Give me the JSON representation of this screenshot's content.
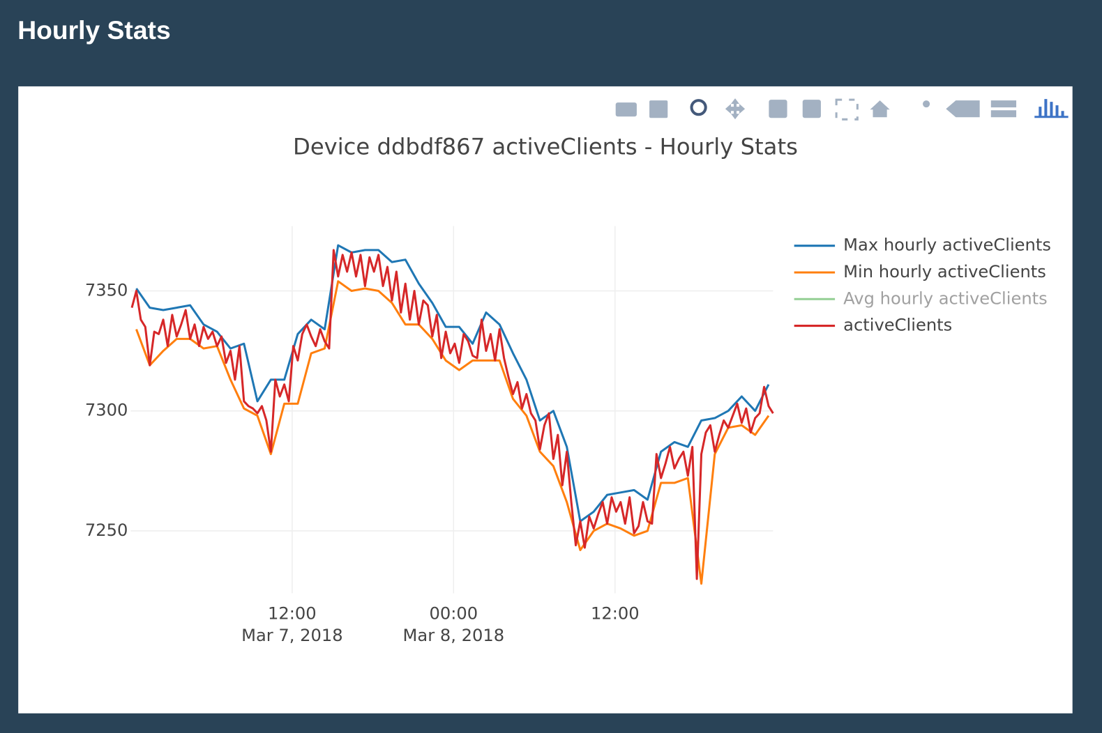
{
  "header": {
    "title": "Hourly Stats"
  },
  "chart_data": {
    "type": "line",
    "title": "Device ddbdf867 activeClients - Hourly Stats",
    "xlim": [
      "2018-03-07T00:00",
      "2018-03-08T23:45"
    ],
    "xticks": [
      {
        "value": "2018-03-07T12:00",
        "label": "12:00",
        "sublabel": "Mar 7, 2018"
      },
      {
        "value": "2018-03-08T00:00",
        "label": "00:00",
        "sublabel": "Mar 8, 2018"
      },
      {
        "value": "2018-03-08T12:00",
        "label": "12:00"
      }
    ],
    "ylim": [
      7224,
      7377
    ],
    "yticks": [
      7250,
      7300,
      7350
    ],
    "grid": true,
    "legend": "right",
    "series": [
      {
        "name": "Max hourly activeClients",
        "color": "#1f77b4",
        "x": [
          "2018-03-07T00:25",
          "2018-03-07T01:25",
          "2018-03-07T02:25",
          "2018-03-07T03:25",
          "2018-03-07T04:25",
          "2018-03-07T05:25",
          "2018-03-07T06:25",
          "2018-03-07T07:25",
          "2018-03-07T08:25",
          "2018-03-07T09:25",
          "2018-03-07T10:25",
          "2018-03-07T11:25",
          "2018-03-07T12:25",
          "2018-03-07T13:25",
          "2018-03-07T14:25",
          "2018-03-07T15:25",
          "2018-03-07T16:25",
          "2018-03-07T17:25",
          "2018-03-07T18:25",
          "2018-03-07T19:25",
          "2018-03-07T20:25",
          "2018-03-07T21:25",
          "2018-03-07T22:25",
          "2018-03-07T23:25",
          "2018-03-08T00:25",
          "2018-03-08T01:25",
          "2018-03-08T02:25",
          "2018-03-08T03:25",
          "2018-03-08T04:25",
          "2018-03-08T05:25",
          "2018-03-08T06:25",
          "2018-03-08T07:25",
          "2018-03-08T08:25",
          "2018-03-08T09:25",
          "2018-03-08T10:25",
          "2018-03-08T11:25",
          "2018-03-08T12:25",
          "2018-03-08T13:25",
          "2018-03-08T14:25",
          "2018-03-08T15:25",
          "2018-03-08T16:25",
          "2018-03-08T17:25",
          "2018-03-08T18:25",
          "2018-03-08T19:25",
          "2018-03-08T20:25",
          "2018-03-08T21:25",
          "2018-03-08T22:25",
          "2018-03-08T23:25"
        ],
        "values": [
          7351,
          7343,
          7342,
          7343,
          7344,
          7336,
          7333,
          7326,
          7328,
          7304,
          7313,
          7313,
          7332,
          7338,
          7334,
          7369,
          7366,
          7367,
          7367,
          7362,
          7363,
          7353,
          7345,
          7335,
          7335,
          7328,
          7341,
          7336,
          7324,
          7313,
          7296,
          7300,
          7285,
          7254,
          7258,
          7265,
          7266,
          7267,
          7263,
          7283,
          7287,
          7285,
          7296,
          7297,
          7300,
          7306,
          7300,
          7311
        ]
      },
      {
        "name": "Min hourly activeClients",
        "color": "#ff7f0e",
        "x": [
          "2018-03-07T00:25",
          "2018-03-07T01:25",
          "2018-03-07T02:25",
          "2018-03-07T03:25",
          "2018-03-07T04:25",
          "2018-03-07T05:25",
          "2018-03-07T06:25",
          "2018-03-07T07:25",
          "2018-03-07T08:25",
          "2018-03-07T09:25",
          "2018-03-07T10:25",
          "2018-03-07T11:25",
          "2018-03-07T12:25",
          "2018-03-07T13:25",
          "2018-03-07T14:25",
          "2018-03-07T15:25",
          "2018-03-07T16:25",
          "2018-03-07T17:25",
          "2018-03-07T18:25",
          "2018-03-07T19:25",
          "2018-03-07T20:25",
          "2018-03-07T21:25",
          "2018-03-07T22:25",
          "2018-03-07T23:25",
          "2018-03-08T00:25",
          "2018-03-08T01:25",
          "2018-03-08T02:25",
          "2018-03-08T03:25",
          "2018-03-08T04:25",
          "2018-03-08T05:25",
          "2018-03-08T06:25",
          "2018-03-08T07:25",
          "2018-03-08T08:25",
          "2018-03-08T09:25",
          "2018-03-08T10:25",
          "2018-03-08T11:25",
          "2018-03-08T12:25",
          "2018-03-08T13:25",
          "2018-03-08T14:25",
          "2018-03-08T15:25",
          "2018-03-08T16:25",
          "2018-03-08T17:25",
          "2018-03-08T18:25",
          "2018-03-08T19:25",
          "2018-03-08T20:25",
          "2018-03-08T21:25",
          "2018-03-08T22:25",
          "2018-03-08T23:25"
        ],
        "values": [
          7334,
          7319,
          7325,
          7330,
          7330,
          7326,
          7327,
          7313,
          7301,
          7298,
          7282,
          7303,
          7303,
          7324,
          7326,
          7354,
          7350,
          7351,
          7350,
          7345,
          7336,
          7336,
          7330,
          7321,
          7317,
          7321,
          7321,
          7321,
          7305,
          7298,
          7283,
          7277,
          7262,
          7242,
          7250,
          7253,
          7251,
          7248,
          7250,
          7270,
          7270,
          7272,
          7228,
          7282,
          7293,
          7294,
          7290,
          7298
        ]
      },
      {
        "name": "Avg hourly activeClients",
        "color": "#2ca02c",
        "visible": "legendonly"
      },
      {
        "name": "activeClients",
        "color": "#d62728",
        "x": [
          "2018-03-07T00:05",
          "2018-03-07T00:25",
          "2018-03-07T00:45",
          "2018-03-07T01:05",
          "2018-03-07T01:25",
          "2018-03-07T01:45",
          "2018-03-07T02:05",
          "2018-03-07T02:25",
          "2018-03-07T02:45",
          "2018-03-07T03:05",
          "2018-03-07T03:25",
          "2018-03-07T03:45",
          "2018-03-07T04:05",
          "2018-03-07T04:25",
          "2018-03-07T04:45",
          "2018-03-07T05:05",
          "2018-03-07T05:25",
          "2018-03-07T05:45",
          "2018-03-07T06:05",
          "2018-03-07T06:25",
          "2018-03-07T06:45",
          "2018-03-07T07:05",
          "2018-03-07T07:25",
          "2018-03-07T07:45",
          "2018-03-07T08:05",
          "2018-03-07T08:25",
          "2018-03-07T08:45",
          "2018-03-07T09:05",
          "2018-03-07T09:25",
          "2018-03-07T09:45",
          "2018-03-07T10:05",
          "2018-03-07T10:25",
          "2018-03-07T10:45",
          "2018-03-07T11:05",
          "2018-03-07T11:25",
          "2018-03-07T11:45",
          "2018-03-07T12:05",
          "2018-03-07T12:25",
          "2018-03-07T12:45",
          "2018-03-07T13:05",
          "2018-03-07T13:25",
          "2018-03-07T13:45",
          "2018-03-07T14:05",
          "2018-03-07T14:25",
          "2018-03-07T14:45",
          "2018-03-07T15:05",
          "2018-03-07T15:25",
          "2018-03-07T15:45",
          "2018-03-07T16:05",
          "2018-03-07T16:25",
          "2018-03-07T16:45",
          "2018-03-07T17:05",
          "2018-03-07T17:25",
          "2018-03-07T17:45",
          "2018-03-07T18:05",
          "2018-03-07T18:25",
          "2018-03-07T18:45",
          "2018-03-07T19:05",
          "2018-03-07T19:25",
          "2018-03-07T19:45",
          "2018-03-07T20:05",
          "2018-03-07T20:25",
          "2018-03-07T20:45",
          "2018-03-07T21:05",
          "2018-03-07T21:25",
          "2018-03-07T21:45",
          "2018-03-07T22:05",
          "2018-03-07T22:25",
          "2018-03-07T22:45",
          "2018-03-07T23:05",
          "2018-03-07T23:25",
          "2018-03-07T23:45",
          "2018-03-08T00:05",
          "2018-03-08T00:25",
          "2018-03-08T00:45",
          "2018-03-08T01:05",
          "2018-03-08T01:25",
          "2018-03-08T01:45",
          "2018-03-08T02:05",
          "2018-03-08T02:25",
          "2018-03-08T02:45",
          "2018-03-08T03:05",
          "2018-03-08T03:25",
          "2018-03-08T03:45",
          "2018-03-08T04:05",
          "2018-03-08T04:25",
          "2018-03-08T04:45",
          "2018-03-08T05:05",
          "2018-03-08T05:25",
          "2018-03-08T05:45",
          "2018-03-08T06:05",
          "2018-03-08T06:25",
          "2018-03-08T06:45",
          "2018-03-08T07:05",
          "2018-03-08T07:25",
          "2018-03-08T07:45",
          "2018-03-08T08:05",
          "2018-03-08T08:25",
          "2018-03-08T08:45",
          "2018-03-08T09:05",
          "2018-03-08T09:25",
          "2018-03-08T09:45",
          "2018-03-08T10:05",
          "2018-03-08T10:25",
          "2018-03-08T10:45",
          "2018-03-08T11:05",
          "2018-03-08T11:25",
          "2018-03-08T11:45",
          "2018-03-08T12:05",
          "2018-03-08T12:25",
          "2018-03-08T12:45",
          "2018-03-08T13:05",
          "2018-03-08T13:25",
          "2018-03-08T13:45",
          "2018-03-08T14:05",
          "2018-03-08T14:25",
          "2018-03-08T14:45",
          "2018-03-08T15:05",
          "2018-03-08T15:25",
          "2018-03-08T15:45",
          "2018-03-08T16:05",
          "2018-03-08T16:25",
          "2018-03-08T16:45",
          "2018-03-08T17:05",
          "2018-03-08T17:25",
          "2018-03-08T17:45",
          "2018-03-08T18:05",
          "2018-03-08T18:25",
          "2018-03-08T18:45",
          "2018-03-08T19:05",
          "2018-03-08T19:25",
          "2018-03-08T19:45",
          "2018-03-08T20:05",
          "2018-03-08T20:25",
          "2018-03-08T20:45",
          "2018-03-08T21:05",
          "2018-03-08T21:25",
          "2018-03-08T21:45",
          "2018-03-08T22:05",
          "2018-03-08T22:25",
          "2018-03-08T22:45",
          "2018-03-08T23:05",
          "2018-03-08T23:25",
          "2018-03-08T23:45"
        ],
        "values": [
          7343,
          7350,
          7338,
          7335,
          7319,
          7333,
          7332,
          7338,
          7327,
          7340,
          7331,
          7336,
          7342,
          7330,
          7336,
          7327,
          7335,
          7330,
          7333,
          7327,
          7331,
          7320,
          7325,
          7313,
          7327,
          7304,
          7302,
          7301,
          7299,
          7302,
          7296,
          7283,
          7313,
          7306,
          7311,
          7304,
          7327,
          7321,
          7332,
          7336,
          7331,
          7327,
          7334,
          7329,
          7326,
          7367,
          7356,
          7365,
          7358,
          7366,
          7356,
          7365,
          7352,
          7364,
          7358,
          7365,
          7352,
          7360,
          7346,
          7358,
          7341,
          7353,
          7338,
          7350,
          7336,
          7346,
          7344,
          7331,
          7340,
          7322,
          7333,
          7324,
          7328,
          7320,
          7332,
          7329,
          7323,
          7322,
          7338,
          7325,
          7332,
          7321,
          7334,
          7322,
          7314,
          7307,
          7312,
          7301,
          7307,
          7299,
          7296,
          7284,
          7294,
          7299,
          7280,
          7290,
          7269,
          7283,
          7262,
          7244,
          7254,
          7243,
          7256,
          7251,
          7257,
          7262,
          7253,
          7264,
          7258,
          7262,
          7253,
          7264,
          7249,
          7252,
          7262,
          7254,
          7253,
          7282,
          7272,
          7278,
          7285,
          7276,
          7280,
          7283,
          7273,
          7285,
          7230,
          7282,
          7291,
          7294,
          7283,
          7290,
          7296,
          7293,
          7298,
          7303,
          7295,
          7301,
          7291,
          7297,
          7299,
          7310,
          7302,
          7299
        ]
      }
    ]
  }
}
